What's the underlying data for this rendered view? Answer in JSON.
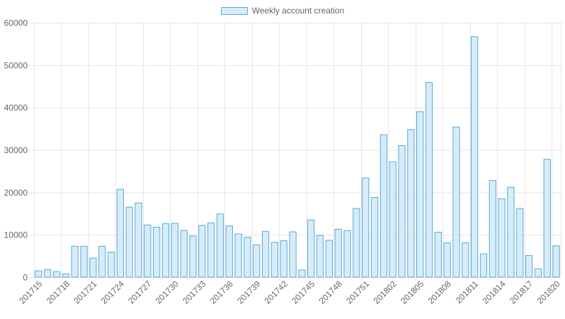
{
  "legend": {
    "label": "Weekly account creation"
  },
  "colors": {
    "bar_fill": "#d6ecf8",
    "bar_stroke": "#5aa9d6",
    "grid": "#e6e6e6",
    "axis_text": "#666666"
  },
  "chart_data": {
    "type": "bar",
    "title": "",
    "xlabel": "",
    "ylabel": "",
    "ylim": [
      0,
      60000
    ],
    "yticks": [
      0,
      10000,
      20000,
      30000,
      40000,
      50000,
      60000
    ],
    "grid": true,
    "legend_position": "top-center",
    "categories": [
      "201715",
      "201716",
      "201717",
      "201718",
      "201719",
      "201720",
      "201721",
      "201722",
      "201723",
      "201724",
      "201725",
      "201726",
      "201727",
      "201728",
      "201729",
      "201730",
      "201731",
      "201732",
      "201733",
      "201734",
      "201735",
      "201736",
      "201737",
      "201738",
      "201739",
      "201740",
      "201741",
      "201742",
      "201743",
      "201744",
      "201745",
      "201746",
      "201747",
      "201748",
      "201749",
      "201750",
      "201751",
      "201752",
      "201801",
      "201802",
      "201803",
      "201804",
      "201805",
      "201806",
      "201807",
      "201808",
      "201809",
      "201810",
      "201811",
      "201812",
      "201813",
      "201814",
      "201815",
      "201816",
      "201817",
      "201818",
      "201819",
      "201820"
    ],
    "tick_labels": [
      "201715",
      "201718",
      "201721",
      "201724",
      "201727",
      "201730",
      "201733",
      "201736",
      "201739",
      "201742",
      "201745",
      "201748",
      "201751",
      "201802",
      "201805",
      "201808",
      "201811",
      "201814",
      "201817",
      "201820"
    ],
    "series": [
      {
        "name": "Weekly account creation",
        "values": [
          1500,
          1800,
          1300,
          800,
          7300,
          7300,
          4500,
          7300,
          5900,
          20700,
          16500,
          17500,
          12300,
          11800,
          12600,
          12700,
          11000,
          9700,
          12200,
          12800,
          14900,
          12100,
          10200,
          9400,
          7600,
          10800,
          8200,
          8600,
          10700,
          1700,
          13500,
          9800,
          8700,
          11300,
          11000,
          16200,
          23400,
          18800,
          33600,
          27200,
          31000,
          34800,
          39000,
          45900,
          10600,
          8100,
          35400,
          8100,
          56700,
          5500,
          22800,
          18500,
          21200,
          16200,
          5100,
          2000,
          27800,
          7400
        ]
      }
    ]
  }
}
